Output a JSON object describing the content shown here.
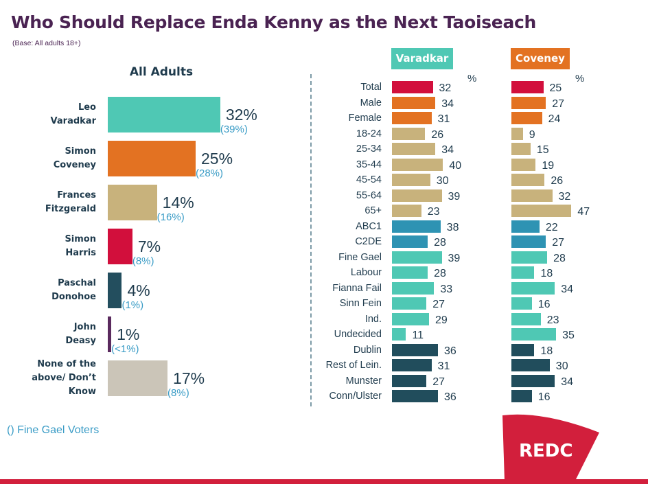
{
  "title": "Who Should Replace Enda Kenny as the Next Taoiseach",
  "subtitle": "(Base: All adults 18+)",
  "footnote": "() Fine Gael Voters",
  "logo_text": "REDC",
  "chart_data": [
    {
      "type": "bar",
      "orientation": "horizontal",
      "title": "All Adults",
      "categories": [
        "Leo Varadkar",
        "Simon Coveney",
        "Frances Fitzgerald",
        "Simon Harris",
        "Paschal Donohoe",
        "John Deasy",
        "None of the above/ Don’t Know"
      ],
      "label_lines": [
        [
          "Leo",
          "Varadkar"
        ],
        [
          "Simon",
          "Coveney"
        ],
        [
          "Frances",
          "Fitzgerald"
        ],
        [
          "Simon",
          "Harris"
        ],
        [
          "Paschal",
          "Donohoe"
        ],
        [
          "John",
          "Deasy"
        ],
        [
          "None of the",
          "above/ Don’t",
          "Know"
        ]
      ],
      "values": [
        32,
        25,
        14,
        7,
        4,
        1,
        17
      ],
      "value_labels": [
        "32%",
        "25%",
        "14%",
        "7%",
        "4%",
        "1%",
        "17%"
      ],
      "fine_gael_labels": [
        "(39%)",
        "(28%)",
        "(16%)",
        "(8%)",
        "(1%)",
        "(<1%)",
        "(8%)"
      ],
      "fine_gael_values": [
        39,
        28,
        16,
        8,
        1,
        0.5,
        8
      ],
      "colors": [
        "#4fc8b4",
        "#e37222",
        "#c8b27c",
        "#d20f3c",
        "#234e5e",
        "#5a2a5e",
        "#cbc5b8"
      ],
      "unit": "%"
    },
    {
      "type": "bar",
      "orientation": "horizontal",
      "unit_label": "%",
      "categories": [
        "Total",
        "Male",
        "Female",
        "18-24",
        "25-34",
        "35-44",
        "45-54",
        "55-64",
        "65+",
        "ABC1",
        "C2DE",
        "Fine Gael",
        "Labour",
        "Fianna Fail",
        "Sinn Fein",
        "Ind.",
        "Undecided",
        "Dublin",
        "Rest of Lein.",
        "Munster",
        "Conn/Ulster"
      ],
      "category_colors": [
        "#d20f3c",
        "#e37222",
        "#e37222",
        "#c8b27c",
        "#c8b27c",
        "#c8b27c",
        "#c8b27c",
        "#c8b27c",
        "#c8b27c",
        "#2e93b3",
        "#2e93b3",
        "#4fc8b4",
        "#4fc8b4",
        "#4fc8b4",
        "#4fc8b4",
        "#4fc8b4",
        "#4fc8b4",
        "#214d5c",
        "#214d5c",
        "#214d5c",
        "#214d5c"
      ],
      "series": [
        {
          "name": "Varadkar",
          "header_color": "#4fc8b4",
          "values": [
            32,
            34,
            31,
            26,
            34,
            40,
            30,
            39,
            23,
            38,
            28,
            39,
            28,
            33,
            27,
            29,
            11,
            36,
            31,
            27,
            36
          ]
        },
        {
          "name": "Coveney",
          "header_color": "#e37222",
          "values": [
            25,
            27,
            24,
            9,
            15,
            19,
            26,
            32,
            47,
            22,
            27,
            28,
            18,
            34,
            16,
            23,
            35,
            18,
            30,
            34,
            16
          ]
        }
      ]
    }
  ]
}
